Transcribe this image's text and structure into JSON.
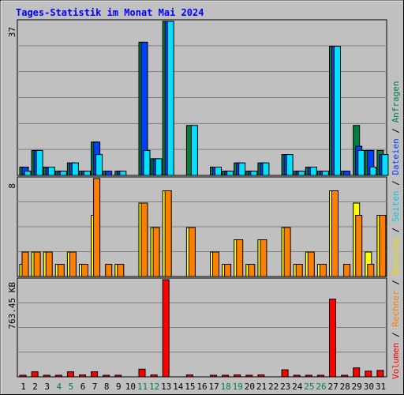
{
  "chart_data": [
    {
      "type": "bar",
      "panel": "hits",
      "title": "Tages-Statistik im Monat Mai 2024",
      "ylabel_max": "37",
      "ymax": 37,
      "categories": [
        "1",
        "2",
        "3",
        "4",
        "5",
        "6",
        "7",
        "8",
        "9",
        "10",
        "11",
        "12",
        "13",
        "14",
        "15",
        "16",
        "17",
        "18",
        "19",
        "20",
        "21",
        "22",
        "23",
        "24",
        "25",
        "26",
        "27",
        "28",
        "29",
        "30",
        "31"
      ],
      "series": [
        {
          "name": "Anfragen",
          "color": "#008040",
          "values": [
            2,
            6,
            2,
            1,
            3,
            1,
            8,
            1,
            1,
            0,
            32,
            4,
            37,
            0,
            12,
            0,
            2,
            1,
            3,
            1,
            3,
            0,
            5,
            1,
            2,
            1,
            31,
            1,
            12,
            6,
            6
          ]
        },
        {
          "name": "Dateien",
          "color": "#0040FF",
          "values": [
            2,
            6,
            2,
            1,
            3,
            1,
            8,
            1,
            1,
            0,
            32,
            4,
            37,
            0,
            0,
            0,
            2,
            1,
            3,
            1,
            3,
            0,
            5,
            1,
            2,
            1,
            31,
            1,
            7,
            6,
            5
          ]
        },
        {
          "name": "Seiten",
          "color": "#00E0FF",
          "values": [
            1,
            6,
            2,
            1,
            3,
            1,
            5,
            0,
            1,
            0,
            6,
            4,
            37,
            0,
            12,
            0,
            2,
            1,
            3,
            1,
            3,
            0,
            5,
            1,
            2,
            1,
            31,
            0,
            6,
            2,
            5
          ]
        }
      ]
    },
    {
      "type": "bar",
      "panel": "visits",
      "ylabel_max": "8",
      "ymax": 8,
      "categories": [
        "1",
        "2",
        "3",
        "4",
        "5",
        "6",
        "7",
        "8",
        "9",
        "10",
        "11",
        "12",
        "13",
        "14",
        "15",
        "16",
        "17",
        "18",
        "19",
        "20",
        "21",
        "22",
        "23",
        "24",
        "25",
        "26",
        "27",
        "28",
        "29",
        "30",
        "31"
      ],
      "series": [
        {
          "name": "Besuche",
          "color": "#FFFF00",
          "values": [
            1,
            2,
            2,
            1,
            2,
            1,
            5,
            0,
            1,
            0,
            6,
            4,
            7,
            0,
            4,
            0,
            2,
            1,
            3,
            1,
            3,
            0,
            4,
            1,
            2,
            1,
            7,
            0,
            6,
            2,
            5
          ]
        },
        {
          "name": "Rechner",
          "color": "#FF8000",
          "values": [
            2,
            2,
            2,
            1,
            2,
            1,
            8,
            1,
            1,
            0,
            6,
            4,
            7,
            0,
            4,
            0,
            2,
            1,
            3,
            1,
            3,
            0,
            4,
            1,
            2,
            1,
            7,
            1,
            5,
            1,
            5
          ]
        }
      ]
    },
    {
      "type": "bar",
      "panel": "volume",
      "ylabel_max": "763.45 KB",
      "ymax": 763.45,
      "categories": [
        "1",
        "2",
        "3",
        "4",
        "5",
        "6",
        "7",
        "8",
        "9",
        "10",
        "11",
        "12",
        "13",
        "14",
        "15",
        "16",
        "17",
        "18",
        "19",
        "20",
        "21",
        "22",
        "23",
        "24",
        "25",
        "26",
        "27",
        "28",
        "29",
        "30",
        "31"
      ],
      "series": [
        {
          "name": "Volumen",
          "color": "#FF0000",
          "values": [
            8,
            40,
            8,
            8,
            40,
            15,
            40,
            8,
            8,
            0,
            60,
            15,
            763.45,
            0,
            15,
            0,
            8,
            8,
            15,
            8,
            15,
            0,
            55,
            8,
            8,
            8,
            610,
            8,
            70,
            45,
            50
          ]
        }
      ]
    }
  ],
  "side_legend": [
    {
      "text": "Volumen",
      "color": "#FF0000"
    },
    {
      "text": " / ",
      "color": "#000000"
    },
    {
      "text": "Rechner",
      "color": "#FF8000"
    },
    {
      "text": " / ",
      "color": "#000000"
    },
    {
      "text": "Besuche",
      "color": "#E8D800"
    },
    {
      "text": " / ",
      "color": "#000000"
    },
    {
      "text": "Seiten",
      "color": "#00C8E8"
    },
    {
      "text": " / ",
      "color": "#000000"
    },
    {
      "text": "Dateien",
      "color": "#0040FF"
    },
    {
      "text": " / ",
      "color": "#000000"
    },
    {
      "text": "Anfragen",
      "color": "#008040"
    }
  ],
  "weekend_days": [
    4,
    5,
    11,
    12,
    18,
    19,
    25,
    26
  ],
  "colors": {
    "title": "#0000FF",
    "plot_bg": "#C0C0C0",
    "weekend_label": "#008040",
    "grid": "#808080"
  }
}
